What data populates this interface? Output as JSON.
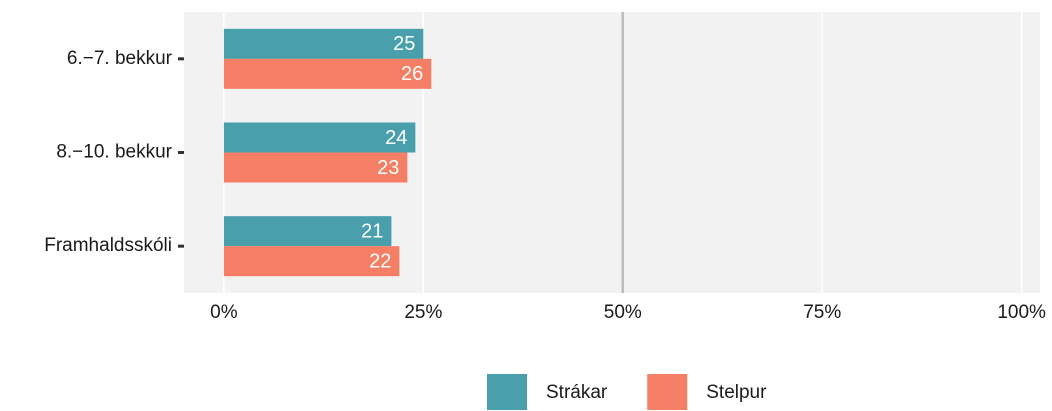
{
  "chart_data": {
    "type": "barh",
    "categories": [
      "6.−7. bekkur",
      "8.−10. bekkur",
      "Framhaldsskóli"
    ],
    "series": [
      {
        "name": "Strákar",
        "color": "#4a9fad",
        "values": [
          25,
          24,
          21
        ]
      },
      {
        "name": "Stelpur",
        "color": "#f47f64",
        "values": [
          26,
          23,
          22
        ]
      }
    ],
    "xlim": [
      -5,
      102.3
    ],
    "xticks": [
      {
        "value": 0,
        "label": "0%"
      },
      {
        "value": 25,
        "label": "25%"
      },
      {
        "value": 50,
        "label": "50%"
      },
      {
        "value": 75,
        "label": "75%"
      },
      {
        "value": 100,
        "label": "100%"
      }
    ],
    "reference_line": 50,
    "grid": true,
    "legend": "bottom"
  }
}
